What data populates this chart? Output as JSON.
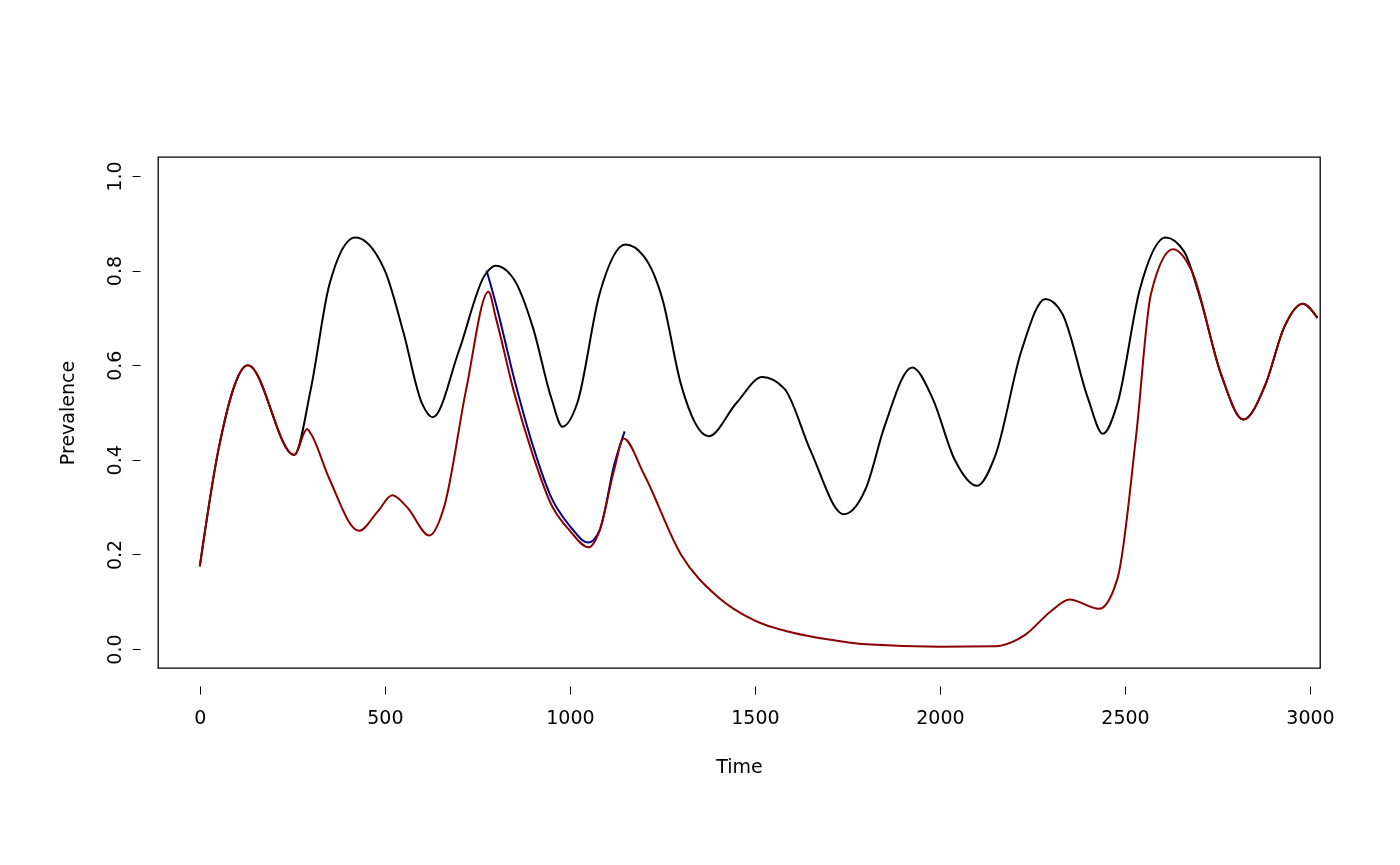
{
  "chart_data": {
    "type": "line",
    "xlabel": "Time",
    "ylabel": "Prevalence",
    "xlim": [
      -113,
      3027
    ],
    "ylim": [
      -0.04,
      1.04
    ],
    "xticks": [
      0,
      500,
      1000,
      1500,
      2000,
      2500,
      3000
    ],
    "yticks": [
      {
        "value": 0,
        "label": "0.0"
      },
      {
        "value": 0.2,
        "label": "0.2"
      },
      {
        "value": 0.4,
        "label": "0.4"
      },
      {
        "value": 0.6,
        "label": "0.6"
      },
      {
        "value": 0.8,
        "label": "0.8"
      },
      {
        "value": 1,
        "label": "1.0"
      }
    ],
    "grid": false,
    "line_style": "solid",
    "marker": "none",
    "series": [
      {
        "color": "#00008b",
        "x": [
          775,
          800,
          850,
          900,
          950,
          1000,
          1050,
          1080,
          1120,
          1148
        ],
        "values": [
          0.8,
          0.73,
          0.57,
          0.43,
          0.32,
          0.26,
          0.225,
          0.25,
          0.39,
          0.46
        ]
      },
      {
        "color": "#000000",
        "x": [
          0,
          50,
          130,
          255,
          300,
          350,
          420,
          500,
          550,
          600,
          630,
          700,
          770,
          800,
          850,
          900,
          950,
          980,
          1020,
          1080,
          1150,
          1200,
          1250,
          1300,
          1375,
          1450,
          1520,
          1580,
          1650,
          1740,
          1800,
          1850,
          1925,
          1980,
          2040,
          2100,
          2150,
          2220,
          2285,
          2330,
          2400,
          2440,
          2480,
          2540,
          2610,
          2660,
          2700,
          2760,
          2820,
          2880,
          2930,
          2980,
          3020
        ],
        "values": [
          0.175,
          0.42,
          0.6,
          0.41,
          0.55,
          0.77,
          0.87,
          0.8,
          0.67,
          0.52,
          0.49,
          0.63,
          0.79,
          0.81,
          0.78,
          0.68,
          0.53,
          0.47,
          0.52,
          0.75,
          0.855,
          0.83,
          0.74,
          0.56,
          0.45,
          0.52,
          0.575,
          0.55,
          0.42,
          0.285,
          0.34,
          0.47,
          0.595,
          0.53,
          0.4,
          0.345,
          0.41,
          0.63,
          0.74,
          0.71,
          0.53,
          0.455,
          0.52,
          0.76,
          0.87,
          0.84,
          0.75,
          0.58,
          0.485,
          0.56,
          0.68,
          0.73,
          0.7
        ]
      },
      {
        "color": "#8b0000",
        "x": [
          0,
          50,
          130,
          255,
          290,
          300,
          350,
          430,
          480,
          520,
          560,
          620,
          660,
          720,
          780,
          800,
          850,
          900,
          950,
          1000,
          1050,
          1080,
          1120,
          1145,
          1200,
          1300,
          1400,
          1500,
          1600,
          1700,
          1800,
          2000,
          2150,
          2230,
          2300,
          2350,
          2430,
          2480,
          2530,
          2570,
          2630,
          2680,
          2760,
          2820,
          2880,
          2930,
          2980,
          3020
        ],
        "values": [
          0.175,
          0.42,
          0.6,
          0.41,
          0.465,
          0.455,
          0.36,
          0.25,
          0.29,
          0.325,
          0.3,
          0.24,
          0.3,
          0.55,
          0.755,
          0.7,
          0.54,
          0.41,
          0.305,
          0.25,
          0.215,
          0.25,
          0.38,
          0.445,
          0.37,
          0.2,
          0.11,
          0.06,
          0.035,
          0.02,
          0.01,
          0.005,
          0.006,
          0.03,
          0.08,
          0.105,
          0.085,
          0.15,
          0.45,
          0.75,
          0.845,
          0.8,
          0.58,
          0.485,
          0.56,
          0.68,
          0.73,
          0.7
        ]
      }
    ]
  }
}
